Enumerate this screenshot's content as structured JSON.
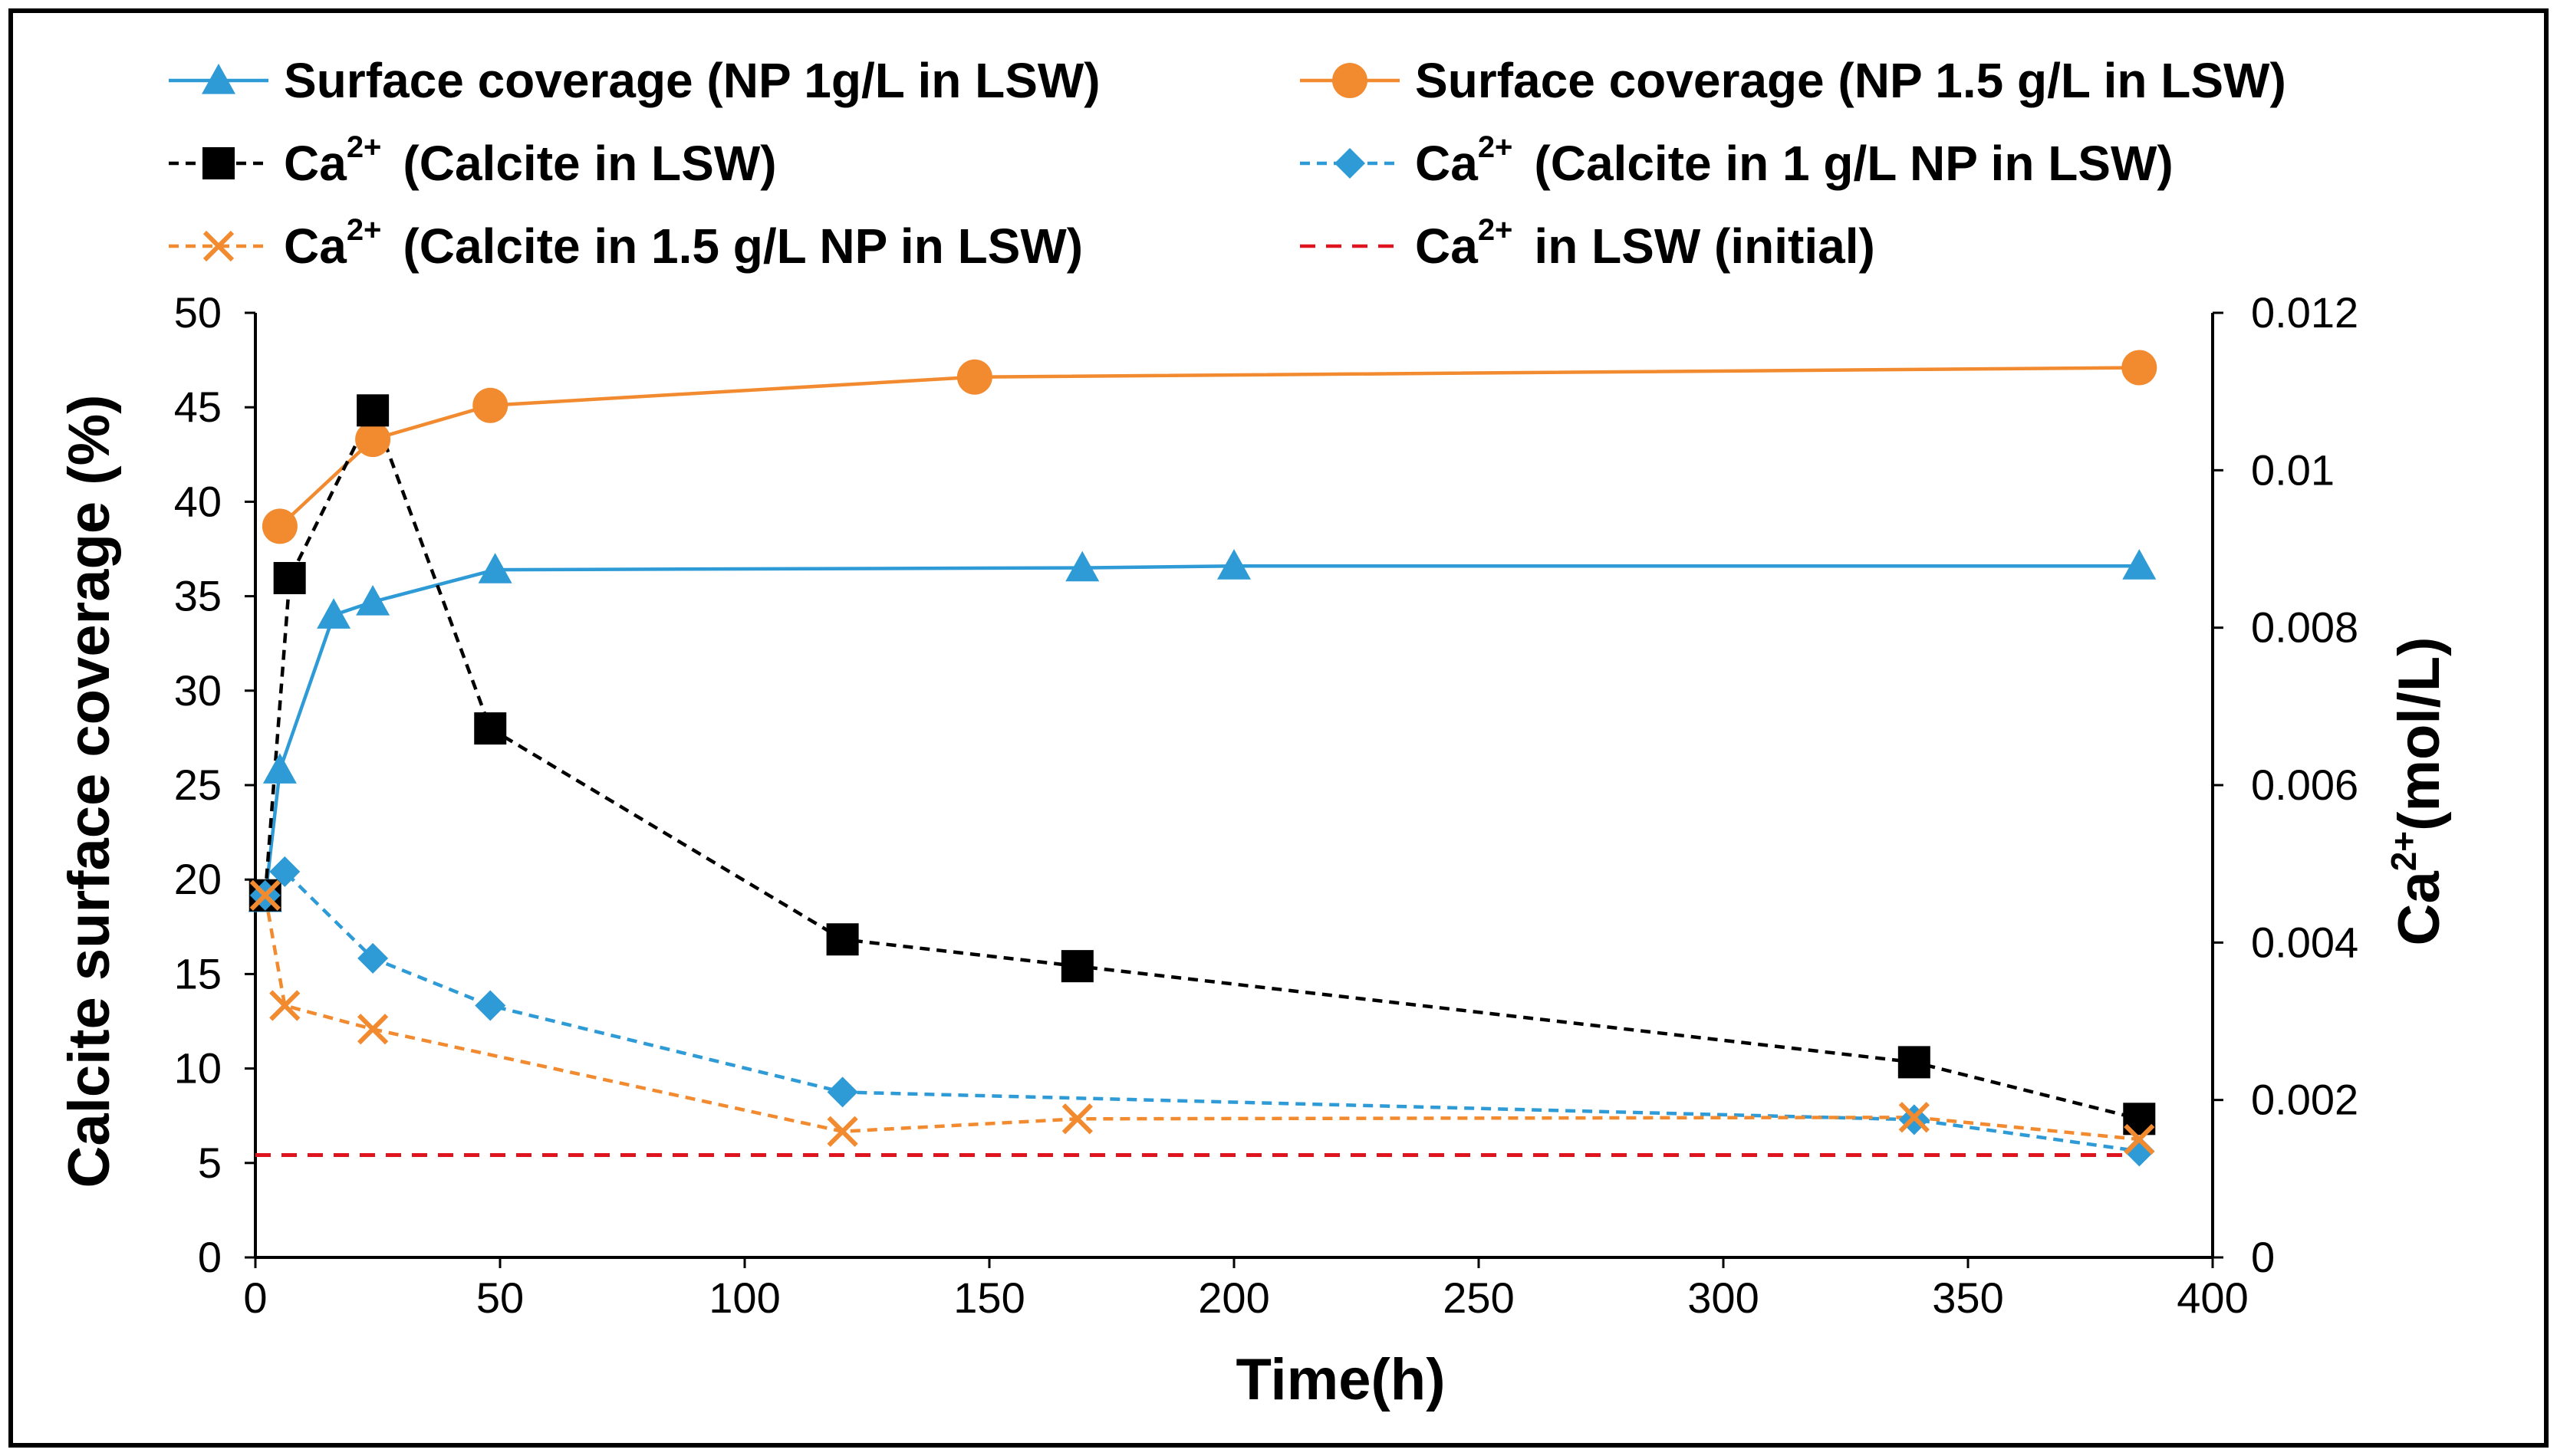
{
  "chart_data": {
    "type": "line",
    "x_axis": {
      "label": "Time(h)",
      "range": [
        0,
        400
      ],
      "ticks": [
        0,
        50,
        100,
        150,
        200,
        250,
        300,
        350,
        400
      ],
      "tick_labels": [
        "0",
        "50",
        "100",
        "150",
        "200",
        "250",
        "300",
        "350",
        "400"
      ]
    },
    "y_left": {
      "label": "Calcite surface coverage (%)",
      "range": [
        0,
        50
      ],
      "ticks": [
        0,
        5,
        10,
        15,
        20,
        25,
        30,
        35,
        40,
        45,
        50
      ],
      "tick_labels": [
        "0",
        "5",
        "10",
        "15",
        "20",
        "25",
        "30",
        "35",
        "40",
        "45",
        "50"
      ]
    },
    "y_right": {
      "label_main": "Ca",
      "label_sup": "2+",
      "label_unit": "(mol/L)",
      "range": [
        0,
        0.012
      ],
      "ticks": [
        0,
        0.002,
        0.004,
        0.006,
        0.008,
        0.01,
        0.012
      ],
      "tick_labels": [
        "0",
        "0.002",
        "0.004",
        "0.006",
        "0.008",
        "0.01",
        "0.012"
      ]
    },
    "grid": false,
    "legend_position": "top",
    "series": [
      {
        "id": "sc_np1",
        "legend": {
          "pre": "",
          "sup": "",
          "text": "Surface coverage (NP 1g/L in LSW)"
        },
        "axis": "left",
        "color": "#2E9BD6",
        "line_style": "solid",
        "marker": "triangle",
        "x": [
          2,
          5,
          16,
          24,
          49,
          169,
          200,
          385
        ],
        "y": [
          19,
          25.8,
          34,
          34.7,
          36.4,
          36.5,
          36.6,
          36.6
        ]
      },
      {
        "id": "sc_np15",
        "legend": {
          "pre": "",
          "sup": "",
          "text": "Surface coverage (NP 1.5 g/L in LSW)"
        },
        "axis": "left",
        "color": "#F28A30",
        "line_style": "solid",
        "marker": "circle",
        "x": [
          5,
          24,
          48,
          147,
          385
        ],
        "y": [
          38.7,
          43.3,
          45.1,
          46.6,
          47.1
        ]
      },
      {
        "id": "ca_calcite",
        "legend": {
          "pre": "Ca",
          "sup": "2+",
          "text": "(Calcite in LSW)"
        },
        "axis": "right",
        "color": "#000000",
        "line_style": "dashed",
        "marker": "square",
        "x": [
          2,
          7,
          24,
          48,
          120,
          168,
          339,
          385
        ],
        "y": [
          0.0046,
          0.00863,
          0.01076,
          0.00672,
          0.00404,
          0.0037,
          0.00248,
          0.00176
        ]
      },
      {
        "id": "ca_np1",
        "legend": {
          "pre": "Ca",
          "sup": "2+",
          "text": "(Calcite in 1 g/L NP in LSW)"
        },
        "axis": "right",
        "color": "#2E9BD6",
        "line_style": "dashed",
        "marker": "diamond",
        "x": [
          2,
          6,
          24,
          48,
          120,
          339,
          385
        ],
        "y": [
          0.0046,
          0.0049,
          0.0038,
          0.0032,
          0.0021,
          0.00175,
          0.00135
        ]
      },
      {
        "id": "ca_np15",
        "legend": {
          "pre": "Ca",
          "sup": "2+",
          "text": "(Calcite in 1.5 g/L NP in LSW)"
        },
        "axis": "right",
        "color": "#F28A30",
        "line_style": "dashed",
        "marker": "x",
        "x": [
          2,
          6,
          24,
          120,
          168,
          339,
          385
        ],
        "y": [
          0.0046,
          0.0032,
          0.0029,
          0.0016,
          0.00176,
          0.00178,
          0.0015
        ]
      },
      {
        "id": "ca_initial",
        "legend": {
          "pre": "Ca",
          "sup": "2+",
          "text": "in LSW (initial)"
        },
        "axis": "right",
        "color": "#E0141E",
        "line_style": "dashed",
        "marker": "none",
        "x": [
          0,
          385
        ],
        "y": [
          0.0013,
          0.0013
        ]
      }
    ]
  }
}
